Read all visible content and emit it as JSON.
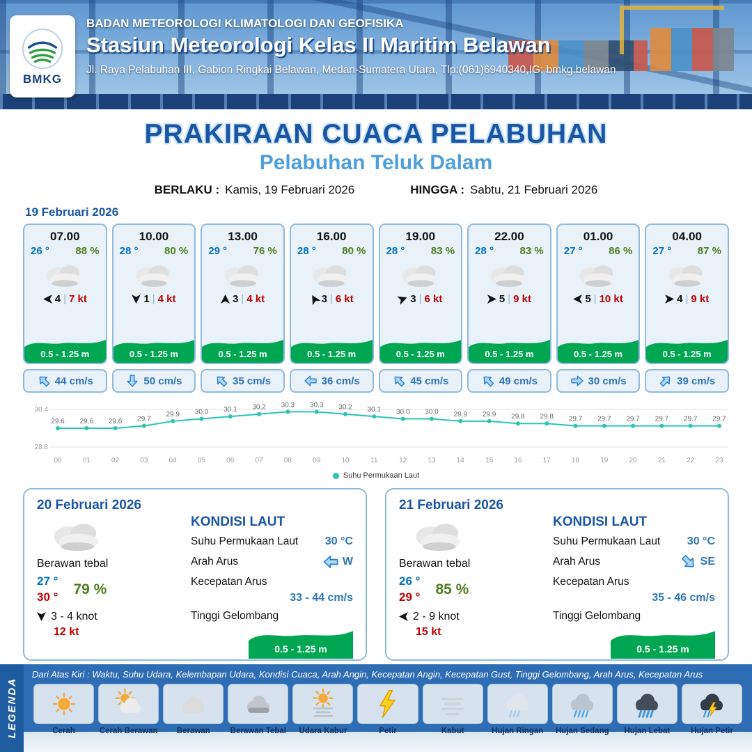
{
  "colors": {
    "accent_blue": "#1a56a4",
    "subtitle_blue": "#4d9fdb",
    "temp_blue": "#0070c0",
    "humidity_green": "#4e7d1e",
    "gust_red": "#c00000",
    "wave_green": "#00a651",
    "current_blue": "#2e75b6",
    "chart_teal": "#2bc4b4",
    "band_blue": "#2e6db4"
  },
  "header": {
    "logo": "BMKG",
    "agency": "BADAN METEOROLOGI KLIMATOLOGI DAN GEOFISIKA",
    "station": "Stasiun Meteorologi Kelas II Maritim Belawan",
    "address": "Jl. Raya Pelabuhan III, Gabion Ringkai Belawan, Medan-Sumatera Utara, Tlp:(061)6940340,IG: bmkg.belawan"
  },
  "title": {
    "main": "PRAKIRAAN CUACA PELABUHAN",
    "sub": "Pelabuhan Teluk Dalam"
  },
  "validity": {
    "berlaku_label": "BERLAKU :",
    "berlaku_value": "Kamis, 19 Februari 2026",
    "hingga_label": "HINGGA :",
    "hingga_value": "Sabtu, 21 Februari 2026"
  },
  "forecast_date": "19 Februari 2026",
  "hourly": [
    {
      "time": "07.00",
      "temp": "26 °",
      "humidity": "88 %",
      "wind_dir_deg": 180,
      "wind_speed": "4",
      "gust": "7 kt",
      "wave": "0.5 - 1.25 m",
      "current_dir_deg": -135,
      "current": "44 cm/s"
    },
    {
      "time": "10.00",
      "temp": "28 °",
      "humidity": "80 %",
      "wind_dir_deg": 90,
      "wind_speed": "1",
      "gust": "4 kt",
      "wave": "0.5 - 1.25 m",
      "current_dir_deg": 90,
      "current": "50 cm/s"
    },
    {
      "time": "13.00",
      "temp": "29 °",
      "humidity": "76 %",
      "wind_dir_deg": -90,
      "wind_speed": "3",
      "gust": "4 kt",
      "wave": "0.5 - 1.25 m",
      "current_dir_deg": -135,
      "current": "35 cm/s"
    },
    {
      "time": "16.00",
      "temp": "28 °",
      "humidity": "80 %",
      "wind_dir_deg": -120,
      "wind_speed": "3",
      "gust": "6 kt",
      "wave": "0.5 - 1.25 m",
      "current_dir_deg": 180,
      "current": "36 cm/s"
    },
    {
      "time": "19.00",
      "temp": "28 °",
      "humidity": "83 %",
      "wind_dir_deg": -20,
      "wind_speed": "3",
      "gust": "6 kt",
      "wave": "0.5 - 1.25 m",
      "current_dir_deg": -135,
      "current": "45 cm/s"
    },
    {
      "time": "22.00",
      "temp": "28 °",
      "humidity": "83 %",
      "wind_dir_deg": 0,
      "wind_speed": "5",
      "gust": "9 kt",
      "wave": "0.5 - 1.25 m",
      "current_dir_deg": -135,
      "current": "49 cm/s"
    },
    {
      "time": "01.00",
      "temp": "27 °",
      "humidity": "86 %",
      "wind_dir_deg": 180,
      "wind_speed": "5",
      "gust": "10 kt",
      "wave": "0.5 - 1.25 m",
      "current_dir_deg": 0,
      "current": "30 cm/s"
    },
    {
      "time": "04.00",
      "temp": "27 °",
      "humidity": "87 %",
      "wind_dir_deg": 0,
      "wind_speed": "4",
      "gust": "9 kt",
      "wave": "0.5 - 1.25 m",
      "current_dir_deg": -45,
      "current": "39 cm/s"
    }
  ],
  "chart_data": {
    "type": "line",
    "x": [
      "00",
      "01",
      "02",
      "03",
      "04",
      "05",
      "06",
      "07",
      "08",
      "09",
      "10",
      "11",
      "12",
      "13",
      "14",
      "15",
      "16",
      "17",
      "18",
      "19",
      "20",
      "21",
      "22",
      "23"
    ],
    "series": [
      {
        "name": "Suhu Permukaan Laut",
        "values": [
          29.6,
          29.6,
          29.6,
          29.7,
          29.9,
          30.0,
          30.1,
          30.2,
          30.3,
          30.3,
          30.2,
          30.1,
          30.0,
          30.0,
          29.9,
          29.9,
          29.8,
          29.8,
          29.7,
          29.7,
          29.7,
          29.7,
          29.7,
          29.7
        ]
      }
    ],
    "ylim": [
      28.8,
      30.4
    ],
    "yticks": [
      28.8,
      30.4
    ],
    "legend_position": "bottom",
    "grid": true
  },
  "day_cards": [
    {
      "date": "20 Februari 2026",
      "condition": "Berawan tebal",
      "temp_min": "27 °",
      "temp_max": "30 °",
      "humidity": "79 %",
      "wind_dir_deg": 90,
      "wind": "3 - 4 knot",
      "gust": "12 kt",
      "sea": {
        "heading": "KONDISI LAUT",
        "sst_label": "Suhu Permukaan Laut",
        "sst": "30 °C",
        "current_dir_label": "Arah Arus",
        "current_dir": "W",
        "current_dir_deg": 180,
        "current_speed_label": "Kecepatan Arus",
        "current_speed": "33 - 44 cm/s",
        "wave_label": "Tinggi Gelombang",
        "wave": "0.5 - 1.25 m"
      }
    },
    {
      "date": "21 Februari 2026",
      "condition": "Berawan tebal",
      "temp_min": "26 °",
      "temp_max": "29 °",
      "humidity": "85 %",
      "wind_dir_deg": 180,
      "wind": "2 - 9 knot",
      "gust": "15 kt",
      "sea": {
        "heading": "KONDISI LAUT",
        "sst_label": "Suhu Permukaan Laut",
        "sst": "30 °C",
        "current_dir_label": "Arah Arus",
        "current_dir": "SE",
        "current_dir_deg": 45,
        "current_speed_label": "Kecepatan Arus",
        "current_speed": "35 - 46 cm/s",
        "wave_label": "Tinggi Gelombang",
        "wave": "0.5 - 1.25 m"
      }
    }
  ],
  "legend": {
    "title": "LEGENDA",
    "note": "Dari Atas Kiri : Waktu, Suhu Udara, Kelembapan Udara, Kondisi Cuaca, Arah Angin, Kecepatan Angin, Kecepatan Gust, Tinggi Gelombang, Arah Arus, Kecepatan Arus",
    "items": [
      {
        "label": "Cerah",
        "icon": "sun"
      },
      {
        "label": "Cerah Berawan",
        "icon": "sun-cloud"
      },
      {
        "label": "Berawan",
        "icon": "cloud"
      },
      {
        "label": "Berawan Tebal",
        "icon": "cloud-thick"
      },
      {
        "label": "Udara Kabur",
        "icon": "haze"
      },
      {
        "label": "Petir",
        "icon": "bolt"
      },
      {
        "label": "Kabut",
        "icon": "fog"
      },
      {
        "label": "Hujan Ringan",
        "icon": "rain-light"
      },
      {
        "label": "Hujan Sedang",
        "icon": "rain-mid"
      },
      {
        "label": "Hujan Lebat",
        "icon": "rain-heavy"
      },
      {
        "label": "Hujan Petir",
        "icon": "rain-bolt"
      }
    ]
  }
}
